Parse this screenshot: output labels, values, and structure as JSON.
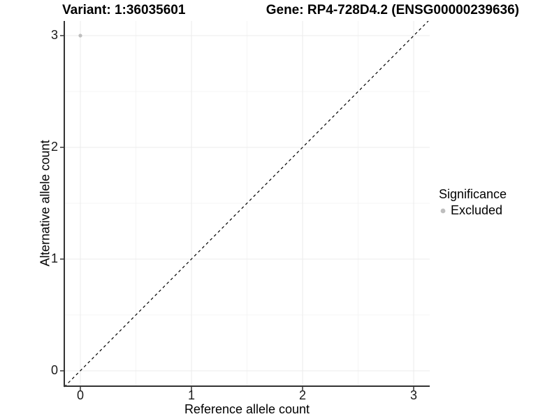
{
  "titles": {
    "variant": "Variant: 1:36035601",
    "gene": "Gene: RP4-728D4.2 (ENSG00000239636)"
  },
  "axes": {
    "x": {
      "label": "Reference allele count",
      "ticks": [
        "0",
        "1",
        "2",
        "3"
      ]
    },
    "y": {
      "label": "Alternative allele count",
      "ticks": [
        "0",
        "1",
        "2",
        "3"
      ]
    }
  },
  "legend": {
    "title": "Significance",
    "items": [
      {
        "label": "Excluded",
        "color": "#bebebe"
      }
    ]
  },
  "colors": {
    "background": "#ffffff",
    "grid_major": "#ebebeb",
    "grid_minor": "#f4f4f4",
    "axis_line": "#333333",
    "tick_text": "#1a1a1a",
    "point": "#bebebe",
    "identity_line": "#000000"
  },
  "chart_data": {
    "type": "scatter",
    "title": "Variant: 1:36035601 | Gene: RP4-728D4.2 (ENSG00000239636)",
    "xlabel": "Reference allele count",
    "ylabel": "Alternative allele count",
    "xlim": [
      -0.15,
      3.15
    ],
    "ylim": [
      -0.15,
      3.15
    ],
    "x_ticks": [
      0,
      1,
      2,
      3
    ],
    "y_ticks": [
      0,
      1,
      2,
      3
    ],
    "grid": "major and minor gridlines on white background",
    "legend_position": "right",
    "series": [
      {
        "name": "Excluded",
        "color": "#bebebe",
        "points": [
          {
            "x": 0,
            "y": 3
          }
        ]
      }
    ],
    "annotations": [
      {
        "type": "identity_line",
        "style": "dashed",
        "from": [
          0,
          0
        ],
        "to": [
          3,
          3
        ]
      }
    ]
  }
}
